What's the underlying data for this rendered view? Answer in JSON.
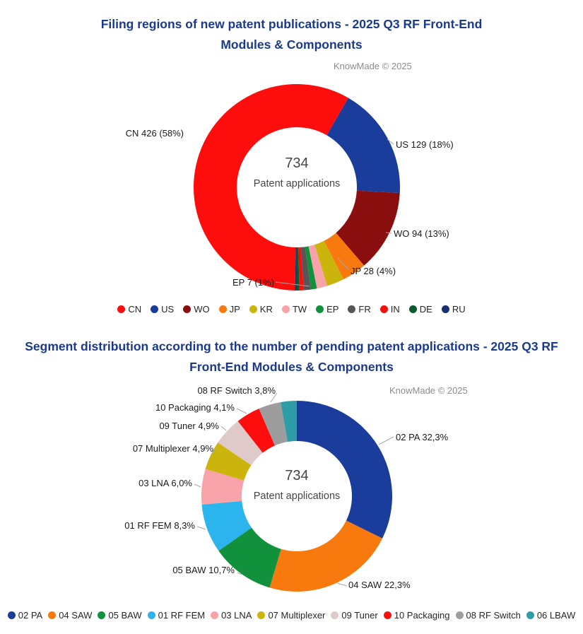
{
  "report": {
    "colors": {
      "title": "#1B3A8C",
      "watermark": "#8C8C8C",
      "center_text": "#454545",
      "callout_text": "#1A1A1A",
      "leader_line": "#A6A6A6"
    }
  },
  "chart_data": [
    {
      "type": "pie",
      "subtype": "donut",
      "title": "Filing regions of new patent publications - 2025 Q3 RF Front-End\nModules & Components",
      "watermark": "KnowMade © 2025",
      "center": {
        "value": "734",
        "label": "Patent applications"
      },
      "total": 734,
      "start_angle_deg": 181,
      "legend_position": "bottom",
      "segments": [
        {
          "code": "CN",
          "value": 426,
          "pct": 58,
          "callout": "CN 426 (58%)",
          "color": "#FE0D0D"
        },
        {
          "code": "US",
          "value": 129,
          "pct": 18,
          "callout": "US 129 (18%)",
          "color": "#1A3D9B"
        },
        {
          "code": "WO",
          "value": 94,
          "pct": 13,
          "callout": "WO 94 (13%)",
          "color": "#8A0E0E"
        },
        {
          "code": "JP",
          "value": 28,
          "pct": 4,
          "callout": "JP 28 (4%)",
          "color": "#F8790D"
        },
        {
          "code": "KR",
          "value": 20,
          "color": "#CBB40C",
          "estimated": true
        },
        {
          "code": "TW",
          "value": 12,
          "color": "#F8A3AA",
          "estimated": true
        },
        {
          "code": "EP",
          "value": 7,
          "pct": 1,
          "callout": "EP 7 (1%)",
          "color": "#12913D"
        },
        {
          "code": "FR",
          "value": 8,
          "color": "#565656",
          "estimated": true
        },
        {
          "code": "IN",
          "value": 5,
          "color": "#F90D0D",
          "estimated": true
        },
        {
          "code": "DE",
          "value": 3,
          "color": "#0D5B2C",
          "estimated": true
        },
        {
          "code": "RU",
          "value": 2,
          "color": "#1A2F6E",
          "estimated": true
        }
      ]
    },
    {
      "type": "pie",
      "subtype": "donut",
      "title": "Segment distribution according to the number of pending patent applications - 2025 Q3 RF\nFront-End Modules & Components",
      "watermark": "KnowMade © 2025",
      "center": {
        "value": "734",
        "label": "Patent applications"
      },
      "total": 734,
      "unit": "percent",
      "start_angle_deg": 0,
      "legend_position": "bottom",
      "segments": [
        {
          "code": "02 PA",
          "value": 32.3,
          "callout": "02 PA 32,3%",
          "color": "#1A3D9B"
        },
        {
          "code": "04 SAW",
          "value": 22.3,
          "callout": "04 SAW 22,3%",
          "color": "#F8790D"
        },
        {
          "code": "05 BAW",
          "value": 10.7,
          "callout": "05 BAW 10,7%",
          "color": "#12913D"
        },
        {
          "code": "01 RF FEM",
          "value": 8.3,
          "callout": "01 RF FEM 8,3%",
          "color": "#2CB4EC"
        },
        {
          "code": "03 LNA",
          "value": 6.0,
          "callout": "03 LNA 6,0%",
          "color": "#F8A3AA"
        },
        {
          "code": "07 Multiplexer",
          "value": 4.9,
          "callout": "07 Multiplexer 4,9%",
          "color": "#CBB40C"
        },
        {
          "code": "09 Tuner",
          "value": 4.9,
          "callout": "09 Tuner 4,9%",
          "color": "#DFC9C9"
        },
        {
          "code": "10 Packaging",
          "value": 4.1,
          "callout": "10 Packaging 4,1%",
          "color": "#FE0D0D"
        },
        {
          "code": "08 RF Switch",
          "value": 3.8,
          "callout": "08 RF Switch 3,8%",
          "color": "#9D9D9D"
        },
        {
          "code": "06 LBAW",
          "value": 2.7,
          "color": "#2E9DA8",
          "estimated": true
        }
      ]
    }
  ]
}
